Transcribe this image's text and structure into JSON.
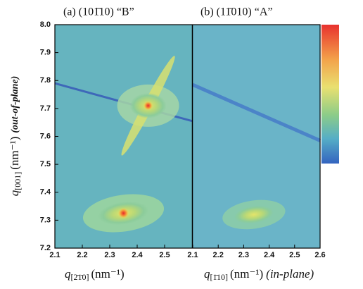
{
  "figure": {
    "type": "heatmap",
    "ylabel": {
      "symbol": "q",
      "sub": "[001]",
      "unit": "(nm⁻¹)",
      "note": "(out-of-plane)"
    },
    "ylim": [
      7.2,
      8.0
    ],
    "yticks": [
      7.2,
      7.3,
      7.4,
      7.5,
      7.6,
      7.7,
      7.8,
      7.9,
      {
        "value": 8.0,
        "label": "8.0"
      }
    ],
    "panels": [
      {
        "title": "(a) (101̄10)  “B”",
        "xlabel": {
          "symbol": "q",
          "sub": "[2̄1̄0]",
          "unit": "(nm⁻¹)"
        },
        "xlim": [
          2.1,
          2.6
        ],
        "xticks": [
          2.1,
          2.2,
          2.3,
          2.4,
          2.5
        ],
        "peaks": {
          "x": [
            2.44,
            2.35
          ],
          "y": [
            7.71,
            7.325
          ]
        },
        "streak": {
          "x": [
            2.1,
            2.6
          ],
          "y": [
            7.79,
            7.655
          ]
        }
      },
      {
        "title": "(b) (11̄010)  “A”",
        "xlabel": {
          "symbol": "q",
          "sub": "[1̄10]",
          "unit": "(nm⁻¹)",
          "note": "(in-plane)"
        },
        "xlim": [
          2.1,
          2.6
        ],
        "xticks": [
          2.1,
          2.2,
          2.3,
          2.4,
          2.5,
          2.6
        ],
        "peaks": {
          "x": [
            2.34
          ],
          "y": [
            7.32
          ]
        },
        "streak": {
          "x": [
            2.1,
            2.6
          ],
          "y": [
            7.785,
            7.585
          ]
        }
      }
    ]
  }
}
